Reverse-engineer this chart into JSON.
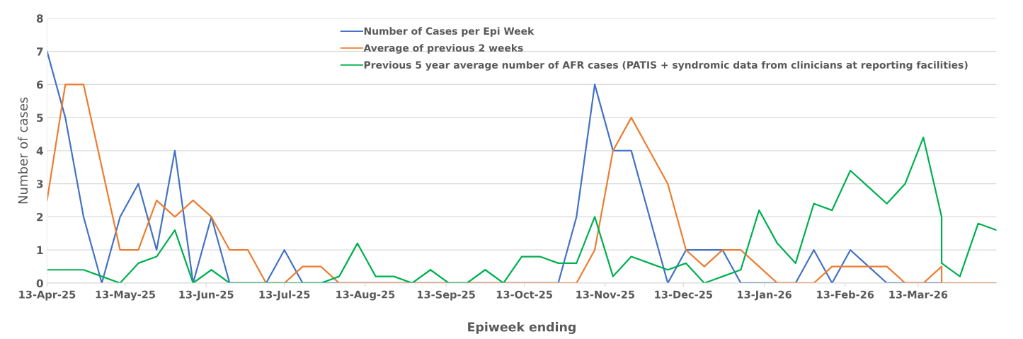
{
  "chart_data": {
    "type": "line",
    "xlabel": "Epiweek ending",
    "ylabel": "Number of cases",
    "xlim": [
      "2025-04-13",
      "2026-04-12"
    ],
    "xticks": [
      {
        "value": "2025-04-13",
        "label": "13-Apr-25"
      },
      {
        "value": "2025-05-13",
        "label": "13-May-25"
      },
      {
        "value": "2025-06-13",
        "label": "13-Jun-25"
      },
      {
        "value": "2025-07-13",
        "label": "13-Jul-25"
      },
      {
        "value": "2025-08-13",
        "label": "13-Aug-25"
      },
      {
        "value": "2025-09-13",
        "label": "13-Sep-25"
      },
      {
        "value": "2025-10-13",
        "label": "13-Oct-25"
      },
      {
        "value": "2025-11-13",
        "label": "13-Nov-25"
      },
      {
        "value": "2025-12-13",
        "label": "13-Dec-25"
      },
      {
        "value": "2026-01-13",
        "label": "13-Jan-26"
      },
      {
        "value": "2026-02-13",
        "label": "13-Feb-26"
      },
      {
        "value": "2026-03-13",
        "label": "13-Mar-26"
      }
    ],
    "ylim": [
      0,
      8
    ],
    "yticks": [
      0,
      1,
      2,
      3,
      4,
      5,
      6,
      7,
      8
    ],
    "grid": "y",
    "legend": "top",
    "marker": "none",
    "line_style": "solid",
    "series": [
      {
        "name": "Number of Cases per Epi Week",
        "color": "#4472c4",
        "x": [
          "2025-04-13",
          "2025-04-20",
          "2025-04-27",
          "2025-05-04",
          "2025-05-11",
          "2025-05-18",
          "2025-05-25",
          "2025-06-01",
          "2025-06-08",
          "2025-06-15",
          "2025-06-22",
          "2025-06-29",
          "2025-07-06",
          "2025-07-13",
          "2025-07-20",
          "2025-07-27",
          "2025-08-03",
          "2025-08-10",
          "2025-08-17",
          "2025-08-24",
          "2025-08-31",
          "2025-09-07",
          "2025-09-14",
          "2025-09-21",
          "2025-09-28",
          "2025-10-05",
          "2025-10-12",
          "2025-10-19",
          "2025-10-26",
          "2025-11-02",
          "2025-11-09",
          "2025-11-16",
          "2025-11-23",
          "2025-11-30",
          "2025-12-07",
          "2025-12-14",
          "2025-12-21",
          "2025-12-28",
          "2026-01-04",
          "2026-01-11",
          "2026-01-18",
          "2026-01-25",
          "2026-02-01",
          "2026-02-08",
          "2026-02-15",
          "2026-02-22",
          "2026-03-01",
          "2026-03-08",
          "2026-03-15",
          "2026-03-22"
        ],
        "values": [
          7,
          5,
          2,
          0,
          2,
          3,
          1,
          4,
          0,
          2,
          0,
          0,
          0,
          1,
          0,
          0,
          0,
          0,
          0,
          0,
          0,
          0,
          0,
          0,
          0,
          0,
          0,
          0,
          0,
          2,
          6,
          4,
          4,
          2,
          0,
          1,
          1,
          1,
          0,
          0,
          0,
          0,
          1,
          0,
          1,
          0.5,
          0,
          0,
          0,
          0
        ]
      },
      {
        "name": "Average of previous 2 weeks",
        "color": "#ed7d31",
        "x": [
          "2025-04-13",
          "2025-04-20",
          "2025-04-27",
          "2025-05-04",
          "2025-05-11",
          "2025-05-18",
          "2025-05-25",
          "2025-06-01",
          "2025-06-08",
          "2025-06-15",
          "2025-06-22",
          "2025-06-29",
          "2025-07-06",
          "2025-07-13",
          "2025-07-20",
          "2025-07-27",
          "2025-08-03",
          "2025-08-10",
          "2025-08-17",
          "2025-08-24",
          "2025-08-31",
          "2025-09-07",
          "2025-09-14",
          "2025-09-21",
          "2025-09-28",
          "2025-10-05",
          "2025-10-12",
          "2025-10-19",
          "2025-10-26",
          "2025-11-02",
          "2025-11-09",
          "2025-11-16",
          "2025-11-23",
          "2025-11-30",
          "2025-12-07",
          "2025-12-14",
          "2025-12-21",
          "2025-12-28",
          "2026-01-04",
          "2026-01-11",
          "2026-01-18",
          "2026-01-25",
          "2026-02-01",
          "2026-02-08",
          "2026-02-15",
          "2026-02-22",
          "2026-03-01",
          "2026-03-08",
          "2026-03-15",
          "2026-03-22",
          "2026-03-22",
          "2026-03-29",
          "2026-04-05",
          "2026-04-12"
        ],
        "values": [
          2.5,
          6,
          6,
          3.5,
          1,
          1,
          2.5,
          2,
          2.5,
          2,
          1,
          1,
          0,
          0,
          0.5,
          0.5,
          0,
          0,
          0,
          0,
          0,
          0,
          0,
          0,
          0,
          0,
          0,
          0,
          0,
          0,
          1,
          4,
          5,
          4,
          3,
          1,
          0.5,
          1,
          1,
          0.5,
          0,
          0,
          0,
          0.5,
          0.5,
          0.5,
          0.5,
          0,
          0,
          0.5,
          0,
          0,
          0,
          0
        ]
      },
      {
        "name": "Previous 5 year average number of AFR cases (PATIS + syndromic data from clinicians at reporting facilities)",
        "color": "#00b050",
        "x": [
          "2025-04-13",
          "2025-04-20",
          "2025-04-27",
          "2025-05-04",
          "2025-05-11",
          "2025-05-18",
          "2025-05-25",
          "2025-06-01",
          "2025-06-08",
          "2025-06-15",
          "2025-06-22",
          "2025-06-29",
          "2025-07-06",
          "2025-07-13",
          "2025-07-20",
          "2025-07-27",
          "2025-08-03",
          "2025-08-10",
          "2025-08-17",
          "2025-08-24",
          "2025-08-31",
          "2025-09-07",
          "2025-09-14",
          "2025-09-21",
          "2025-09-28",
          "2025-10-05",
          "2025-10-12",
          "2025-10-19",
          "2025-10-26",
          "2025-11-02",
          "2025-11-09",
          "2025-11-16",
          "2025-11-23",
          "2025-11-30",
          "2025-12-07",
          "2025-12-14",
          "2025-12-21",
          "2025-12-28",
          "2026-01-04",
          "2026-01-11",
          "2026-01-18",
          "2026-01-25",
          "2026-02-01",
          "2026-02-08",
          "2026-02-15",
          "2026-02-22",
          "2026-03-01",
          "2026-03-08",
          "2026-03-15",
          "2026-03-22",
          "2026-03-22",
          "2026-03-29",
          "2026-04-05",
          "2026-04-12"
        ],
        "values": [
          0.4,
          0.4,
          0.4,
          0.2,
          0,
          0.6,
          0.8,
          1.6,
          0,
          0.4,
          0,
          0,
          0,
          0,
          0,
          0,
          0.2,
          1.2,
          0.2,
          0.2,
          0,
          0.4,
          0,
          0,
          0.4,
          0,
          0.8,
          0.8,
          0.6,
          0.6,
          2,
          0.2,
          0.8,
          0.6,
          0.4,
          0.6,
          0,
          0.2,
          0.4,
          2.2,
          1.2,
          0.6,
          2.4,
          2.2,
          3.4,
          2.9,
          2.4,
          3,
          4.4,
          2,
          0.6,
          0.2,
          1.8,
          1.6
        ]
      }
    ]
  }
}
